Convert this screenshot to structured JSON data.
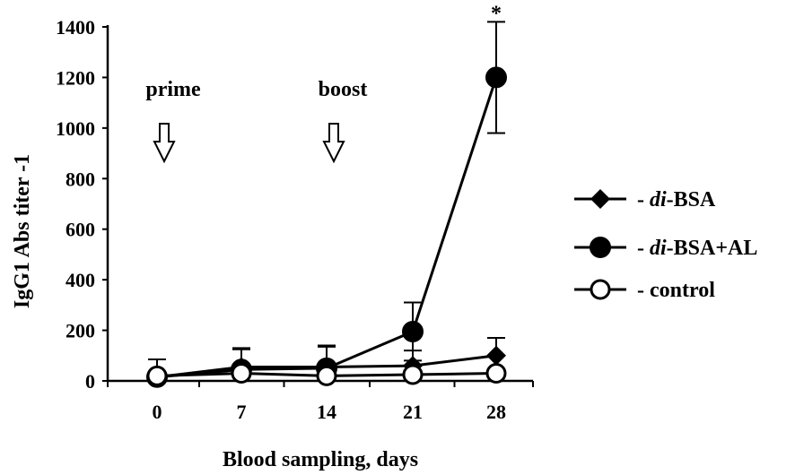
{
  "chart_data": {
    "type": "line",
    "title": "",
    "xlabel": "Blood sampling, days",
    "ylabel": "IgG1 Abs titer -1",
    "x": [
      0,
      7,
      14,
      21,
      28
    ],
    "xticks": [
      "0",
      "7",
      "14",
      "21",
      "28"
    ],
    "yticks": [
      "0",
      "200",
      "400",
      "600",
      "800",
      "1000",
      "1200",
      "1400"
    ],
    "ylim": [
      0,
      1400
    ],
    "grid": false,
    "legend_position": "right",
    "series": [
      {
        "name": "di-BSA",
        "legend_prefix": "- ",
        "legend_italic": "di",
        "legend_rest": "-BSA",
        "marker": "diamond",
        "values": [
          15,
          55,
          55,
          60,
          100
        ],
        "errors": [
          0,
          75,
          80,
          60,
          70
        ]
      },
      {
        "name": "di-BSA+AL",
        "legend_prefix": "- ",
        "legend_italic": "di",
        "legend_rest": "-BSA+AL",
        "marker": "circle-filled",
        "values": [
          15,
          45,
          50,
          195,
          1200
        ],
        "errors": [
          70,
          80,
          90,
          115,
          220
        ]
      },
      {
        "name": "control",
        "legend_prefix": "-  ",
        "legend_italic": "",
        "legend_rest": "control",
        "marker": "circle-open",
        "values": [
          20,
          30,
          20,
          25,
          30
        ],
        "errors": [
          0,
          0,
          0,
          0,
          0
        ]
      }
    ],
    "annotations": [
      {
        "text": "prime",
        "x": 0,
        "arrow": true
      },
      {
        "text": "boost",
        "x": 14,
        "arrow": true
      },
      {
        "text": "*",
        "x": 28,
        "arrow": false
      }
    ]
  }
}
